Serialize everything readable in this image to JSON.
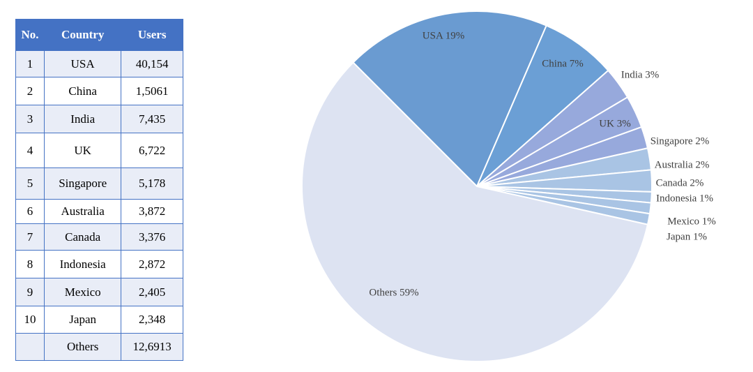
{
  "table": {
    "header": [
      "No.",
      "Country",
      "Users"
    ],
    "rows": [
      [
        "1",
        "USA",
        "40,154"
      ],
      [
        "2",
        "China",
        "1,5061"
      ],
      [
        "3",
        "India",
        "7,435"
      ],
      [
        "4",
        "UK",
        "6,722"
      ],
      [
        "5",
        "Singapore",
        "5,178"
      ],
      [
        "6",
        "Australia",
        "3,872"
      ],
      [
        "7",
        "Canada",
        "3,376"
      ],
      [
        "8",
        "Indonesia",
        "2,872"
      ],
      [
        "9",
        "Mexico",
        "2,405"
      ],
      [
        "10",
        "Japan",
        "2,348"
      ],
      [
        null,
        "Others",
        "12,6913"
      ]
    ]
  },
  "chart_data": {
    "type": "pie",
    "categories": [
      "USA 19%",
      "China 7%",
      "India 3%",
      "UK 3%",
      "Singapore 2%",
      "Australia 2%",
      "Canada 2%",
      "Indonesia 1%",
      "Mexico 1%",
      "Japan 1%",
      "Others 59%"
    ],
    "values": [
      19,
      7,
      3,
      3,
      2,
      2,
      2,
      1,
      1,
      1,
      59
    ],
    "colors": [
      "#6a9bd1",
      "#6b9fd5",
      "#97a9dc",
      "#97a9dc",
      "#97a9dc",
      "#a9c4e4",
      "#a9c4e4",
      "#a9c4e4",
      "#a9c4e4",
      "#a9c4e4",
      "#dde3f2"
    ]
  }
}
